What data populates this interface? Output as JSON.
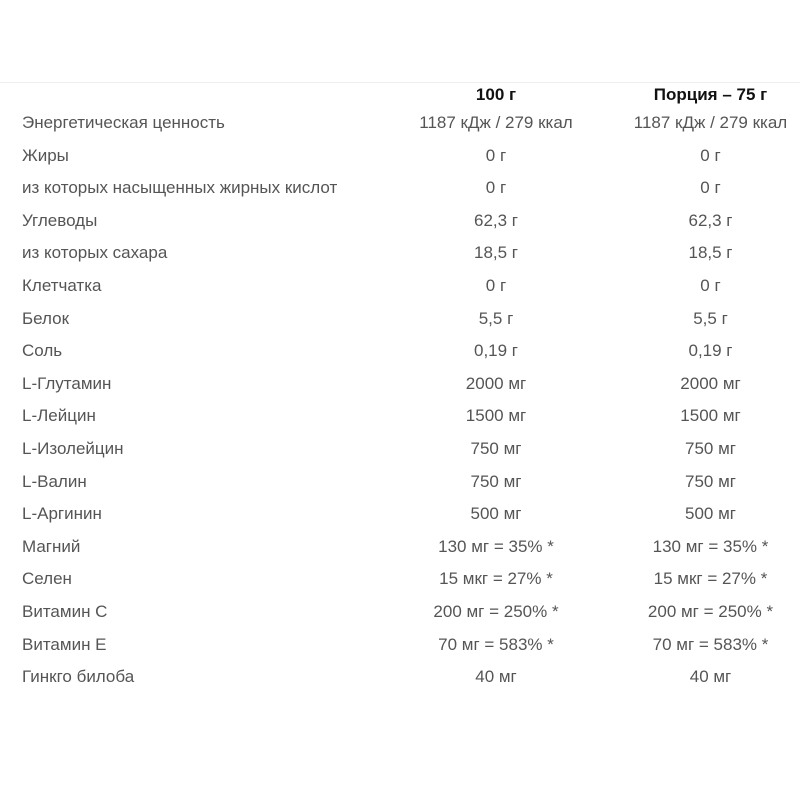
{
  "table": {
    "header": [
      "100 г",
      "Порция – 75 г"
    ],
    "rows": [
      [
        "Энергетическая ценность",
        "1187 кДж / 279 ккал",
        "1187 кДж / 279 ккал"
      ],
      [
        "Жиры",
        "0 г",
        "0 г"
      ],
      [
        "из которых насыщенных жирных кислот",
        "0 г",
        "0 г"
      ],
      [
        "Углеводы",
        "62,3 г",
        "62,3 г"
      ],
      [
        "из которых сахара",
        "18,5 г",
        "18,5 г"
      ],
      [
        "Клетчатка",
        "0 г",
        "0 г"
      ],
      [
        "Белок",
        "5,5 г",
        "5,5 г"
      ],
      [
        "Соль",
        "0,19 г",
        "0,19 г"
      ],
      [
        "L-Глутамин",
        "2000 мг",
        "2000 мг"
      ],
      [
        "L-Лейцин",
        "1500 мг",
        "1500 мг"
      ],
      [
        "L-Изолейцин",
        "750 мг",
        "750 мг"
      ],
      [
        "L-Валин",
        "750 мг",
        "750 мг"
      ],
      [
        "L-Аргинин",
        "500 мг",
        "500 мг"
      ],
      [
        "Магний",
        "130 мг = 35% *",
        "130 мг = 35% *"
      ],
      [
        "Селен",
        "15 мкг = 27% *",
        "15 мкг = 27% *"
      ],
      [
        "Витамин C",
        "200 мг = 250% *",
        "200 мг = 250% *"
      ],
      [
        "Витамин E",
        "70 мг = 583% *",
        "70 мг = 583% *"
      ],
      [
        "Гинкго билоба",
        "40 мг",
        "40 мг"
      ]
    ]
  }
}
